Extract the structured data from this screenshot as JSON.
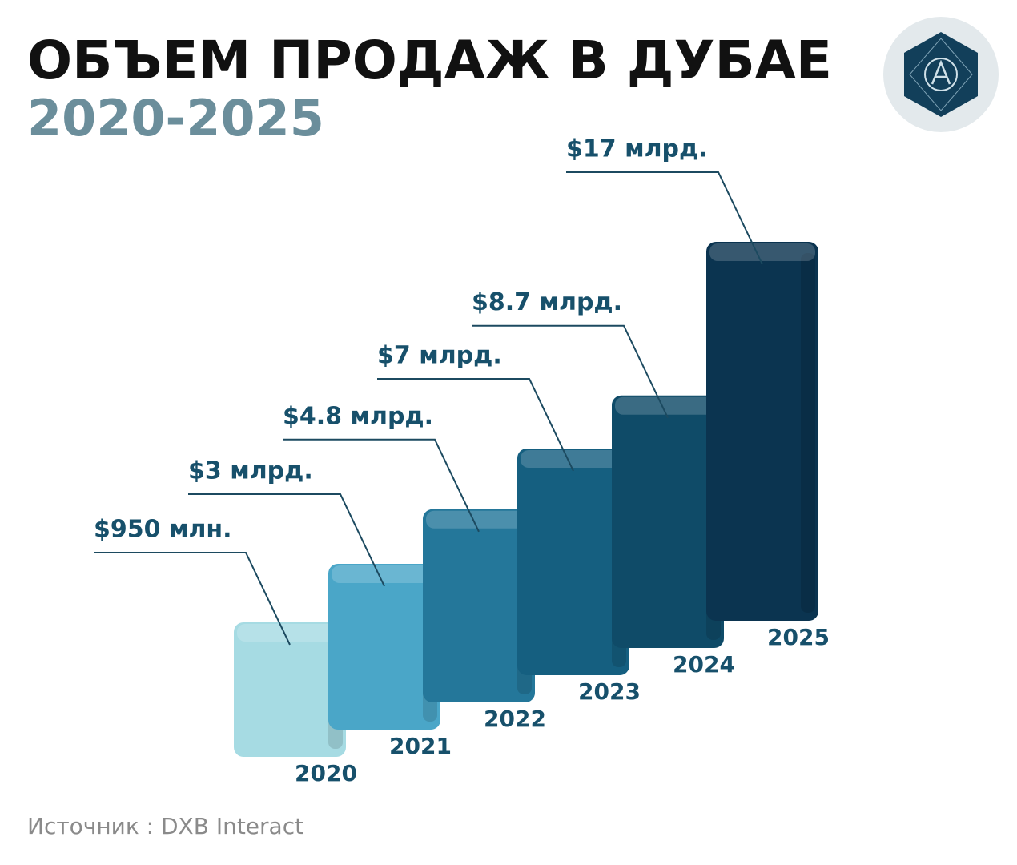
{
  "chart_data": {
    "type": "bar",
    "title": "ОБЪЕМ ПРОДАЖ В ДУБАЕ",
    "subtitle": "2020-2025",
    "categories": [
      "2020",
      "2021",
      "2022",
      "2023",
      "2024",
      "2025"
    ],
    "values": [
      0.95,
      3,
      4.8,
      7,
      8.7,
      17
    ],
    "value_labels": [
      "$950 млн.",
      "$3 млрд.",
      "$4.8 млрд.",
      "$7 млрд.",
      "$8.7 млрд.",
      "$17 млрд."
    ],
    "colors": [
      "#a6dbe3",
      "#4aa6c8",
      "#24779a",
      "#155f80",
      "#0f4b68",
      "#0b3450"
    ],
    "source": "Источник : DXB Interact"
  }
}
